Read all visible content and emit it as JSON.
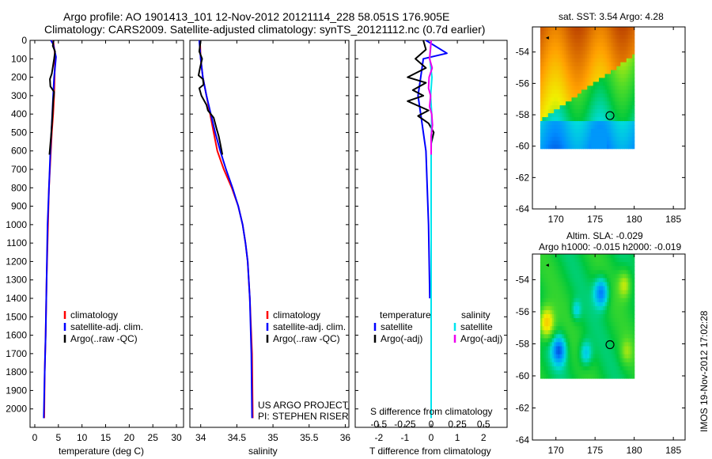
{
  "header": {
    "line1": "Argo profile: AO 1901413_101 12-Nov-2012 20121114_228 58.051S 176.905E",
    "line2": "Climatology: CARS2009. Satellite-adjusted climatology: synTS_20121112.nc (0.7d earlier)"
  },
  "colors": {
    "climatology": "#ff0000",
    "satellite_adj": "#0000ff",
    "argo": "#000000",
    "salinity_satellite": "#00e5ee",
    "salinity_argo": "#ee00ee"
  },
  "chart_data": [
    {
      "id": "temperature",
      "type": "line",
      "xlabel": "temperature (deg C)",
      "ylabel": "",
      "xlim": [
        -1,
        31.5
      ],
      "ylim": [
        0,
        2100
      ],
      "xticks": [
        "0",
        "5",
        "10",
        "15",
        "20",
        "25",
        "30"
      ],
      "yticks": [
        "0",
        "100",
        "200",
        "300",
        "400",
        "500",
        "600",
        "700",
        "800",
        "900",
        "1000",
        "1100",
        "1200",
        "1300",
        "1400",
        "1500",
        "1600",
        "1700",
        "1800",
        "1900",
        "2000"
      ],
      "legend": [
        "climatology",
        "satellite-adj. clim.",
        "Argo(..raw -QC)"
      ],
      "series": [
        {
          "name": "climatology",
          "color": "#ff0000",
          "points": [
            [
              3.9,
              0
            ],
            [
              4.3,
              80
            ],
            [
              4.2,
              200
            ],
            [
              4.1,
              300
            ],
            [
              3.9,
              400
            ],
            [
              3.6,
              500
            ],
            [
              3.3,
              650
            ],
            [
              3.0,
              800
            ],
            [
              2.8,
              1000
            ],
            [
              2.5,
              1300
            ],
            [
              2.3,
              1600
            ],
            [
              2.1,
              1800
            ],
            [
              2.0,
              2050
            ]
          ]
        },
        {
          "name": "satellite-adj. clim.",
          "color": "#0000ff",
          "points": [
            [
              3.4,
              0
            ],
            [
              3.9,
              20
            ],
            [
              4.5,
              90
            ],
            [
              4.1,
              200
            ],
            [
              3.9,
              300
            ],
            [
              3.7,
              400
            ],
            [
              3.3,
              600
            ],
            [
              3.0,
              800
            ],
            [
              2.7,
              1000
            ],
            [
              2.5,
              1300
            ],
            [
              2.3,
              1600
            ],
            [
              2.1,
              1800
            ],
            [
              1.9,
              2050
            ]
          ]
        },
        {
          "name": "Argo(..raw -QC)",
          "color": "#000000",
          "points": [
            [
              4.0,
              0
            ],
            [
              3.8,
              30
            ],
            [
              4.3,
              60
            ],
            [
              4.1,
              100
            ],
            [
              3.6,
              180
            ],
            [
              3.2,
              210
            ],
            [
              3.3,
              250
            ],
            [
              4.1,
              280
            ],
            [
              3.9,
              330
            ],
            [
              3.7,
              420
            ],
            [
              3.5,
              500
            ],
            [
              3.3,
              560
            ],
            [
              3.1,
              620
            ]
          ]
        }
      ]
    },
    {
      "id": "salinity",
      "type": "line",
      "xlabel": "salinity",
      "ylabel": "",
      "xlim": [
        33.85,
        36.05
      ],
      "ylim": [
        0,
        2100
      ],
      "xticks": [
        "34",
        "34.5",
        "35",
        "35.5",
        "36"
      ],
      "legend": [
        "climatology",
        "satellite-adj. clim.",
        "Argo(..raw -QC)"
      ],
      "annotations": [
        "US ARGO PROJECT",
        "PI: STEPHEN RISER"
      ],
      "series": [
        {
          "name": "climatology",
          "color": "#ff0000",
          "points": [
            [
              33.99,
              0
            ],
            [
              34.0,
              100
            ],
            [
              34.03,
              200
            ],
            [
              34.08,
              300
            ],
            [
              34.13,
              400
            ],
            [
              34.18,
              500
            ],
            [
              34.23,
              600
            ],
            [
              34.32,
              700
            ],
            [
              34.43,
              800
            ],
            [
              34.52,
              900
            ],
            [
              34.58,
              1000
            ],
            [
              34.62,
              1100
            ],
            [
              34.65,
              1200
            ],
            [
              34.68,
              1400
            ],
            [
              34.71,
              1700
            ],
            [
              34.72,
              2050
            ]
          ]
        },
        {
          "name": "satellite-adj. clim.",
          "color": "#0000ff",
          "points": [
            [
              33.98,
              0
            ],
            [
              34.0,
              100
            ],
            [
              34.03,
              200
            ],
            [
              34.08,
              300
            ],
            [
              34.14,
              400
            ],
            [
              34.2,
              500
            ],
            [
              34.27,
              600
            ],
            [
              34.35,
              700
            ],
            [
              34.44,
              800
            ],
            [
              34.52,
              900
            ],
            [
              34.58,
              1000
            ],
            [
              34.62,
              1100
            ],
            [
              34.65,
              1200
            ],
            [
              34.68,
              1400
            ],
            [
              34.7,
              1700
            ],
            [
              34.71,
              2050
            ]
          ]
        },
        {
          "name": "Argo(..raw -QC)",
          "color": "#000000",
          "points": [
            [
              34.0,
              0
            ],
            [
              33.98,
              60
            ],
            [
              34.02,
              100
            ],
            [
              33.99,
              150
            ],
            [
              33.97,
              190
            ],
            [
              34.03,
              210
            ],
            [
              34.04,
              240
            ],
            [
              33.98,
              260
            ],
            [
              34.01,
              300
            ],
            [
              34.08,
              350
            ],
            [
              34.1,
              380
            ],
            [
              34.18,
              420
            ],
            [
              34.22,
              480
            ],
            [
              34.25,
              520
            ],
            [
              34.27,
              560
            ],
            [
              34.3,
              620
            ]
          ]
        }
      ]
    },
    {
      "id": "difference",
      "type": "line",
      "xlabel": "T difference from climatology",
      "xlabel_top": "S difference from climatology",
      "xlim": [
        -2.9,
        2.9
      ],
      "ylim": [
        0,
        2100
      ],
      "xticks": [
        "-2",
        "-1",
        "0",
        "1",
        "2"
      ],
      "xticks_salinity": [
        "-0.5",
        "-0.25",
        "0",
        "0.25",
        "0.5"
      ],
      "legend_temperature_title": "temperature",
      "legend_salinity_title": "salinity",
      "legend": [
        "satellite",
        "Argo(-adj)",
        "satellite",
        "Argo(-adj)"
      ],
      "series": [
        {
          "name": "temperature satellite",
          "color": "#0000ff",
          "points": [
            [
              -0.2,
              0
            ],
            [
              0.6,
              70
            ],
            [
              -0.3,
              100
            ],
            [
              -0.4,
              200
            ],
            [
              -0.5,
              300
            ],
            [
              -0.4,
              400
            ],
            [
              -0.2,
              600
            ],
            [
              -0.1,
              1000
            ],
            [
              -0.05,
              1400
            ]
          ]
        },
        {
          "name": "temperature Argo(-adj)",
          "color": "#000000",
          "points": [
            [
              -0.3,
              0
            ],
            [
              -0.2,
              50
            ],
            [
              -0.6,
              100
            ],
            [
              -0.2,
              150
            ],
            [
              -0.9,
              200
            ],
            [
              -0.2,
              230
            ],
            [
              -0.7,
              270
            ],
            [
              -0.3,
              300
            ],
            [
              -0.9,
              330
            ],
            [
              -0.1,
              380
            ],
            [
              -0.5,
              410
            ],
            [
              -0.1,
              450
            ],
            [
              0.1,
              500
            ],
            [
              0.0,
              560
            ],
            [
              0.0,
              650
            ]
          ]
        },
        {
          "name": "salinity satellite",
          "color": "#00e5ee",
          "points": [
            [
              0.0,
              0
            ],
            [
              -0.05,
              100
            ],
            [
              0.03,
              200
            ],
            [
              -0.02,
              300
            ],
            [
              0.02,
              400
            ],
            [
              0.0,
              600
            ],
            [
              0.0,
              1000
            ],
            [
              0.0,
              1500
            ],
            [
              0.0,
              2050
            ]
          ]
        },
        {
          "name": "salinity Argo(-adj)",
          "color": "#ee00ee",
          "points": [
            [
              0.0,
              0
            ],
            [
              -0.06,
              100
            ],
            [
              0.04,
              150
            ],
            [
              -0.08,
              200
            ],
            [
              -0.1,
              260
            ],
            [
              -0.02,
              300
            ],
            [
              -0.06,
              360
            ],
            [
              0.02,
              400
            ],
            [
              0.05,
              460
            ],
            [
              0.0,
              520
            ],
            [
              0.0,
              620
            ]
          ]
        }
      ]
    },
    {
      "id": "sst-map",
      "type": "heatmap",
      "title": "sat. SST: 3.54 Argo: 4.28",
      "xlim": [
        167,
        186.5
      ],
      "ylim": [
        -64,
        -52.4
      ],
      "xticks": [
        "170",
        "175",
        "180",
        "185"
      ],
      "yticks": [
        "-54",
        "-56",
        "-58",
        "-60",
        "-62",
        "-64"
      ],
      "data_extent": {
        "lon": [
          168,
          180
        ],
        "lat": [
          -60,
          -52.4
        ]
      },
      "argo_position": {
        "lon": 176.905,
        "lat": -58.051
      }
    },
    {
      "id": "sla-map",
      "type": "heatmap",
      "title": "Altim. SLA: -0.029",
      "subtitle": "Argo h1000: -0.015 h2000: -0.019",
      "xlim": [
        167,
        186.5
      ],
      "ylim": [
        -64,
        -52.4
      ],
      "xticks": [
        "170",
        "175",
        "180",
        "185"
      ],
      "yticks": [
        "-54",
        "-56",
        "-58",
        "-60",
        "-62",
        "-64"
      ],
      "data_extent": {
        "lon": [
          168,
          180
        ],
        "lat": [
          -60,
          -52.4
        ]
      },
      "argo_position": {
        "lon": 176.905,
        "lat": -58.051
      }
    }
  ],
  "footer": {
    "stamp": "IMOS 19-Nov-2012 17:02:28"
  }
}
